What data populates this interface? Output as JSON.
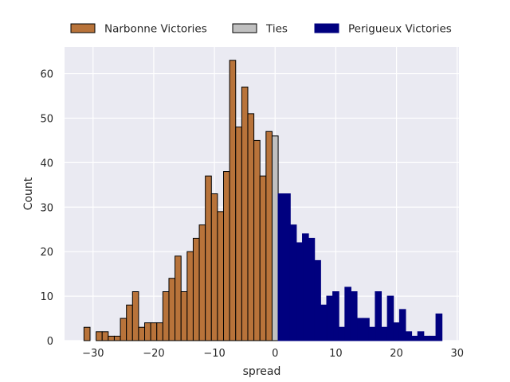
{
  "chart_data": {
    "type": "bar",
    "subtype": "histogram",
    "xlabel": "spread",
    "ylabel": "Count",
    "xlim": [
      -34.7,
      30.3
    ],
    "ylim": [
      0,
      66
    ],
    "xticks": [
      -30,
      -20,
      -10,
      0,
      10,
      20,
      30
    ],
    "yticks": [
      0,
      10,
      20,
      30,
      40,
      50,
      60
    ],
    "grid": true,
    "legend_position": "top, outside plot, horizontal",
    "series": [
      {
        "name": "Narbonne Victories",
        "color": "#b8733a",
        "edge_color": "#000000",
        "x": [
          -31,
          -30,
          -29,
          -28,
          -27,
          -26,
          -25,
          -24,
          -23,
          -22,
          -21,
          -20,
          -19,
          -18,
          -17,
          -16,
          -15,
          -14,
          -13,
          -12,
          -11,
          -10,
          -9,
          -8,
          -7,
          -6,
          -5,
          -4,
          -3,
          -2,
          -1
        ],
        "values": [
          3,
          0,
          2,
          2,
          1,
          1,
          5,
          8,
          11,
          3,
          4,
          4,
          4,
          11,
          14,
          19,
          11,
          20,
          23,
          26,
          37,
          33,
          29,
          38,
          63,
          48,
          57,
          51,
          45,
          37,
          47
        ]
      },
      {
        "name": "Ties",
        "color": "#c0c0c0",
        "edge_color": "#000000",
        "x": [
          0
        ],
        "values": [
          46
        ]
      },
      {
        "name": "Perigueux Victories",
        "color": "#00007f",
        "edge_color": "#00007f",
        "x": [
          1,
          2,
          3,
          4,
          5,
          6,
          7,
          8,
          9,
          10,
          11,
          12,
          13,
          14,
          15,
          16,
          17,
          18,
          19,
          20,
          21,
          22,
          23,
          24,
          25,
          26,
          27
        ],
        "values": [
          33,
          33,
          26,
          22,
          24,
          23,
          18,
          8,
          10,
          11,
          3,
          12,
          11,
          5,
          5,
          3,
          11,
          3,
          10,
          4,
          7,
          2,
          1,
          2,
          1,
          1,
          6
        ]
      }
    ]
  }
}
